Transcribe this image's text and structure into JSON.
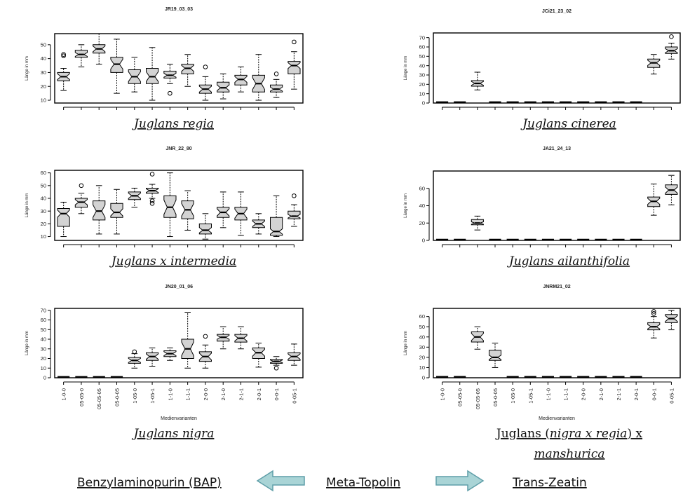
{
  "chart_data": [
    {
      "type": "boxplot",
      "title": "JR19_03_03",
      "ylabel": "Länge in mm",
      "ylim": [
        8,
        58
      ],
      "yticks": [
        10,
        20,
        30,
        40,
        50
      ],
      "caption": [
        {
          "text": "Juglans regia",
          "italic": true
        }
      ],
      "show_xticks": false,
      "boxes": [
        {
          "min": 17,
          "q1": 24,
          "med": 27,
          "q3": 30,
          "max": 33,
          "out": [
            42,
            43
          ]
        },
        {
          "min": 34,
          "q1": 41,
          "med": 43,
          "q3": 46,
          "max": 50,
          "out": []
        },
        {
          "min": 36,
          "q1": 44,
          "med": 47,
          "q3": 50,
          "max": 58,
          "out": []
        },
        {
          "min": 15,
          "q1": 30,
          "med": 36,
          "q3": 41,
          "max": 54,
          "out": []
        },
        {
          "min": 16,
          "q1": 22,
          "med": 27,
          "q3": 32,
          "max": 41,
          "out": []
        },
        {
          "min": 10,
          "q1": 22,
          "med": 27,
          "q3": 33,
          "max": 48,
          "out": []
        },
        {
          "min": 22,
          "q1": 26,
          "med": 28,
          "q3": 31,
          "max": 36,
          "out": [
            15
          ]
        },
        {
          "min": 20,
          "q1": 29,
          "med": 33,
          "q3": 36,
          "max": 43,
          "out": []
        },
        {
          "min": 10,
          "q1": 15,
          "med": 18,
          "q3": 21,
          "max": 27,
          "out": [
            34
          ]
        },
        {
          "min": 11,
          "q1": 16,
          "med": 19,
          "q3": 23,
          "max": 29,
          "out": []
        },
        {
          "min": 16,
          "q1": 21,
          "med": 25,
          "q3": 28,
          "max": 34,
          "out": []
        },
        {
          "min": 10,
          "q1": 16,
          "med": 22,
          "q3": 28,
          "max": 43,
          "out": []
        },
        {
          "min": 12,
          "q1": 16,
          "med": 18,
          "q3": 21,
          "max": 25,
          "out": [
            29
          ]
        },
        {
          "min": 18,
          "q1": 29,
          "med": 35,
          "q3": 38,
          "max": 45,
          "out": [
            52
          ]
        }
      ]
    },
    {
      "type": "boxplot",
      "title": "JCi21_23_02",
      "ylabel": "Länge in mm",
      "ylim": [
        0,
        75
      ],
      "yticks": [
        0,
        10,
        20,
        30,
        40,
        50,
        60,
        70
      ],
      "caption": [
        {
          "text": "Juglans cinerea",
          "italic": true
        }
      ],
      "show_xticks": false,
      "boxes": [
        {
          "min": 1,
          "q1": 1,
          "med": 1,
          "q3": 1,
          "max": 1,
          "out": []
        },
        {
          "min": 1,
          "q1": 1,
          "med": 1,
          "q3": 1,
          "max": 1,
          "out": []
        },
        {
          "min": 14,
          "q1": 18,
          "med": 21,
          "q3": 24,
          "max": 33,
          "out": []
        },
        {
          "min": 1,
          "q1": 1,
          "med": 1,
          "q3": 1,
          "max": 1,
          "out": []
        },
        {
          "min": 1,
          "q1": 1,
          "med": 1,
          "q3": 1,
          "max": 1,
          "out": []
        },
        {
          "min": 1,
          "q1": 1,
          "med": 1,
          "q3": 1,
          "max": 1,
          "out": []
        },
        {
          "min": 1,
          "q1": 1,
          "med": 1,
          "q3": 1,
          "max": 1,
          "out": []
        },
        {
          "min": 1,
          "q1": 1,
          "med": 1,
          "q3": 1,
          "max": 1,
          "out": []
        },
        {
          "min": 1,
          "q1": 1,
          "med": 1,
          "q3": 1,
          "max": 1,
          "out": []
        },
        {
          "min": 1,
          "q1": 1,
          "med": 1,
          "q3": 1,
          "max": 1,
          "out": []
        },
        {
          "min": 1,
          "q1": 1,
          "med": 1,
          "q3": 1,
          "max": 1,
          "out": []
        },
        {
          "min": 1,
          "q1": 1,
          "med": 1,
          "q3": 1,
          "max": 1,
          "out": []
        },
        {
          "min": 31,
          "q1": 38,
          "med": 43,
          "q3": 47,
          "max": 52,
          "out": []
        },
        {
          "min": 47,
          "q1": 53,
          "med": 56,
          "q3": 60,
          "max": 64,
          "out": [
            71
          ]
        }
      ]
    },
    {
      "type": "boxplot",
      "title": "JNR_22_80",
      "ylabel": "Länge in mm",
      "ylim": [
        7,
        62
      ],
      "yticks": [
        10,
        20,
        30,
        40,
        50,
        60
      ],
      "caption": [
        {
          "text": "Juglans x intermedia",
          "italic": true
        }
      ],
      "show_xticks": false,
      "boxes": [
        {
          "min": 10,
          "q1": 18,
          "med": 28,
          "q3": 32,
          "max": 37,
          "out": []
        },
        {
          "min": 28,
          "q1": 33,
          "med": 37,
          "q3": 40,
          "max": 44,
          "out": [
            50
          ]
        },
        {
          "min": 12,
          "q1": 23,
          "med": 30,
          "q3": 38,
          "max": 50,
          "out": []
        },
        {
          "min": 12,
          "q1": 25,
          "med": 29,
          "q3": 36,
          "max": 47,
          "out": []
        },
        {
          "min": 33,
          "q1": 39,
          "med": 42,
          "q3": 45,
          "max": 48,
          "out": []
        },
        {
          "min": 40,
          "q1": 44,
          "med": 46,
          "q3": 48,
          "max": 51,
          "out": [
            36,
            38,
            59
          ]
        },
        {
          "min": 10,
          "q1": 25,
          "med": 33,
          "q3": 42,
          "max": 60,
          "out": []
        },
        {
          "min": 15,
          "q1": 24,
          "med": 31,
          "q3": 38,
          "max": 46,
          "out": []
        },
        {
          "min": 8,
          "q1": 12,
          "med": 15,
          "q3": 20,
          "max": 28,
          "out": []
        },
        {
          "min": 17,
          "q1": 25,
          "med": 29,
          "q3": 33,
          "max": 45,
          "out": []
        },
        {
          "min": 11,
          "q1": 23,
          "med": 28,
          "q3": 33,
          "max": 45,
          "out": []
        },
        {
          "min": 12,
          "q1": 17,
          "med": 20,
          "q3": 23,
          "max": 28,
          "out": []
        },
        {
          "min": 10,
          "q1": 11,
          "med": 14,
          "q3": 25,
          "max": 42,
          "out": []
        },
        {
          "min": 18,
          "q1": 24,
          "med": 26,
          "q3": 30,
          "max": 35,
          "out": [
            42
          ]
        }
      ]
    },
    {
      "type": "boxplot",
      "title": "JA21_24_13",
      "ylabel": "Länge in mm",
      "ylim": [
        0,
        80
      ],
      "yticks": [
        0,
        20,
        40,
        60
      ],
      "caption": [
        {
          "text": "Juglans ailanthifolia",
          "italic": true
        }
      ],
      "show_xticks": false,
      "boxes": [
        {
          "min": 1,
          "q1": 1,
          "med": 1,
          "q3": 1,
          "max": 1,
          "out": []
        },
        {
          "min": 1,
          "q1": 1,
          "med": 1,
          "q3": 1,
          "max": 1,
          "out": []
        },
        {
          "min": 12,
          "q1": 18,
          "med": 20,
          "q3": 24,
          "max": 28,
          "out": []
        },
        {
          "min": 1,
          "q1": 1,
          "med": 1,
          "q3": 1,
          "max": 1,
          "out": []
        },
        {
          "min": 1,
          "q1": 1,
          "med": 1,
          "q3": 1,
          "max": 1,
          "out": []
        },
        {
          "min": 1,
          "q1": 1,
          "med": 1,
          "q3": 1,
          "max": 1,
          "out": []
        },
        {
          "min": 1,
          "q1": 1,
          "med": 1,
          "q3": 1,
          "max": 1,
          "out": []
        },
        {
          "min": 1,
          "q1": 1,
          "med": 1,
          "q3": 1,
          "max": 1,
          "out": []
        },
        {
          "min": 1,
          "q1": 1,
          "med": 1,
          "q3": 1,
          "max": 1,
          "out": []
        },
        {
          "min": 1,
          "q1": 1,
          "med": 1,
          "q3": 1,
          "max": 1,
          "out": []
        },
        {
          "min": 1,
          "q1": 1,
          "med": 1,
          "q3": 1,
          "max": 1,
          "out": []
        },
        {
          "min": 1,
          "q1": 1,
          "med": 1,
          "q3": 1,
          "max": 1,
          "out": []
        },
        {
          "min": 29,
          "q1": 39,
          "med": 45,
          "q3": 50,
          "max": 65,
          "out": []
        },
        {
          "min": 41,
          "q1": 53,
          "med": 58,
          "q3": 64,
          "max": 75,
          "out": []
        }
      ]
    },
    {
      "type": "boxplot",
      "title": "JN20_01_06",
      "ylabel": "Länge in mm",
      "ylim": [
        0,
        72
      ],
      "yticks": [
        0,
        10,
        20,
        30,
        40,
        50,
        60,
        70
      ],
      "caption": [
        {
          "text": "Juglans nigra",
          "italic": true
        }
      ],
      "show_xticks": true,
      "xlabel": "Medienvarianten",
      "categories": [
        "1-0-0",
        "05-05-0",
        "05-05-05",
        "05-0-05",
        "1-05-0",
        "1-05-1",
        "1-1-0",
        "1-1-1",
        "2-0-0",
        "2-1-0",
        "2-1-1",
        "2-0-1",
        "0-0-1",
        "0-05-1"
      ],
      "boxes": [
        {
          "min": 1,
          "q1": 1,
          "med": 1,
          "q3": 1,
          "max": 1,
          "out": []
        },
        {
          "min": 1,
          "q1": 1,
          "med": 1,
          "q3": 1,
          "max": 1,
          "out": []
        },
        {
          "min": 1,
          "q1": 1,
          "med": 1,
          "q3": 1,
          "max": 1,
          "out": []
        },
        {
          "min": 1,
          "q1": 1,
          "med": 1,
          "q3": 1,
          "max": 1,
          "out": []
        },
        {
          "min": 10,
          "q1": 15,
          "med": 18,
          "q3": 21,
          "max": 25,
          "out": [
            27
          ]
        },
        {
          "min": 12,
          "q1": 18,
          "med": 22,
          "q3": 26,
          "max": 31,
          "out": []
        },
        {
          "min": 18,
          "q1": 22,
          "med": 25,
          "q3": 28,
          "max": 31,
          "out": []
        },
        {
          "min": 10,
          "q1": 20,
          "med": 30,
          "q3": 40,
          "max": 68,
          "out": []
        },
        {
          "min": 10,
          "q1": 17,
          "med": 22,
          "q3": 27,
          "max": 34,
          "out": [
            43
          ]
        },
        {
          "min": 30,
          "q1": 38,
          "med": 42,
          "q3": 45,
          "max": 53,
          "out": []
        },
        {
          "min": 30,
          "q1": 37,
          "med": 41,
          "q3": 45,
          "max": 53,
          "out": []
        },
        {
          "min": 11,
          "q1": 20,
          "med": 26,
          "q3": 31,
          "max": 36,
          "out": []
        },
        {
          "min": 13,
          "q1": 15,
          "med": 17,
          "q3": 19,
          "max": 22,
          "out": [
            10
          ]
        },
        {
          "min": 13,
          "q1": 18,
          "med": 22,
          "q3": 26,
          "max": 35,
          "out": []
        }
      ]
    },
    {
      "type": "boxplot",
      "title": "JNRM21_02",
      "ylabel": "Länge in mm",
      "ylim": [
        0,
        68
      ],
      "yticks": [
        0,
        10,
        20,
        30,
        40,
        50,
        60
      ],
      "caption": [
        {
          "text": "Juglans",
          "italic": false
        },
        {
          "text": " (",
          "italic": false
        },
        {
          "text": "nigra x regia",
          "italic": true
        },
        {
          "text": ") x",
          "italic": false
        }
      ],
      "caption2": [
        {
          "text": "manshurica",
          "italic": true
        }
      ],
      "show_xticks": true,
      "xlabel": "Medienvarianten",
      "categories": [
        "1-0-0",
        "05-05-0",
        "05-05-05",
        "05-0-05",
        "1-05-0",
        "1-05-1",
        "1-1-0",
        "1-1-1",
        "2-0-0",
        "2-1-0",
        "2-1-1",
        "2-0-1",
        "0-0-1",
        "0-05-1"
      ],
      "boxes": [
        {
          "min": 1,
          "q1": 1,
          "med": 1,
          "q3": 1,
          "max": 1,
          "out": []
        },
        {
          "min": 1,
          "q1": 1,
          "med": 1,
          "q3": 1,
          "max": 1,
          "out": []
        },
        {
          "min": 28,
          "q1": 35,
          "med": 40,
          "q3": 45,
          "max": 50,
          "out": []
        },
        {
          "min": 10,
          "q1": 17,
          "med": 20,
          "q3": 27,
          "max": 34,
          "out": []
        },
        {
          "min": 1,
          "q1": 1,
          "med": 1,
          "q3": 1,
          "max": 1,
          "out": []
        },
        {
          "min": 1,
          "q1": 1,
          "med": 1,
          "q3": 1,
          "max": 1,
          "out": []
        },
        {
          "min": 1,
          "q1": 1,
          "med": 1,
          "q3": 1,
          "max": 1,
          "out": []
        },
        {
          "min": 1,
          "q1": 1,
          "med": 1,
          "q3": 1,
          "max": 1,
          "out": []
        },
        {
          "min": 1,
          "q1": 1,
          "med": 1,
          "q3": 1,
          "max": 1,
          "out": []
        },
        {
          "min": 1,
          "q1": 1,
          "med": 1,
          "q3": 1,
          "max": 1,
          "out": []
        },
        {
          "min": 1,
          "q1": 1,
          "med": 1,
          "q3": 1,
          "max": 1,
          "out": []
        },
        {
          "min": 1,
          "q1": 1,
          "med": 1,
          "q3": 1,
          "max": 1,
          "out": []
        },
        {
          "min": 39,
          "q1": 47,
          "med": 50,
          "q3": 54,
          "max": 60,
          "out": [
            63,
            65
          ]
        },
        {
          "min": 47,
          "q1": 54,
          "med": 58,
          "q3": 62,
          "max": 66,
          "out": []
        }
      ]
    }
  ],
  "legend": {
    "left": "Benzylaminopurin (BAP)",
    "center": "Meta-Topolin",
    "right": "Trans-Zeatin",
    "arrow_color": "#a9d4d6",
    "arrow_border": "#5f9ea8"
  },
  "colors": {
    "box_fill": "#d3d3d3",
    "line": "#000000"
  }
}
